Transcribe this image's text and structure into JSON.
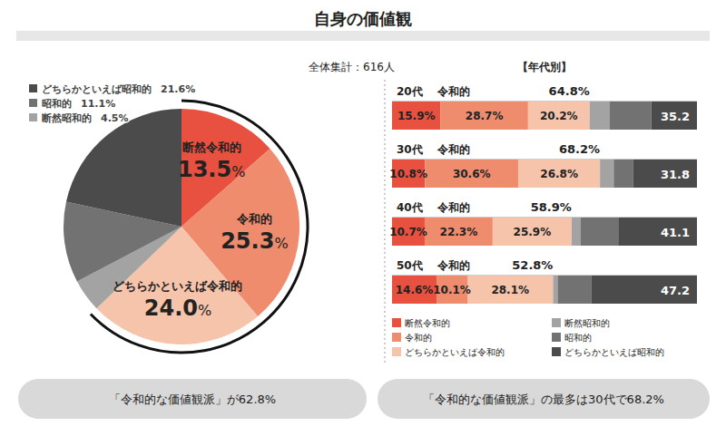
{
  "page": {
    "title": "自身の価値観",
    "sample": "全体集計：616人"
  },
  "chart_data": [
    {
      "type": "pie",
      "categories": [
        "断然令和的",
        "令和的",
        "どちらかといえば令和的",
        "断然昭和的",
        "昭和的",
        "どちらかといえば昭和的"
      ],
      "values": [
        13.5,
        25.3,
        24.0,
        4.5,
        11.1,
        21.6
      ],
      "value_labels": [
        "13.5%",
        "25.3%",
        "24.0%",
        "4.5%",
        "11.1%",
        "21.6%"
      ],
      "colors": [
        "#e8503f",
        "#ef8c6e",
        "#f6c4aa",
        "#a3a3a3",
        "#727272",
        "#4b4b4b"
      ],
      "data_labels": true,
      "legend": "top-left",
      "annotation": "「令和的な価値観派」が62.8%"
    },
    {
      "type": "bar",
      "orientation": "horizontal",
      "stacked": true,
      "title": "【年代別】",
      "categories": [
        "20代",
        "30代",
        "40代",
        "50代"
      ],
      "series": [
        {
          "name": "断然令和的",
          "color": "#e8503f",
          "values": [
            15.9,
            10.8,
            10.7,
            14.6
          ],
          "value_labels": [
            "15.9%",
            "10.8%",
            "10.7%",
            "14.6%"
          ]
        },
        {
          "name": "令和的",
          "color": "#ef8c6e",
          "values": [
            28.7,
            30.6,
            22.3,
            10.1
          ],
          "value_labels": [
            "28.7%",
            "30.6%",
            "22.3%",
            "10.1%"
          ]
        },
        {
          "name": "どちらかといえば令和的",
          "color": "#f6c4aa",
          "values": [
            20.2,
            26.8,
            25.9,
            28.1
          ],
          "value_labels": [
            "20.2%",
            "26.8%",
            "25.9%",
            "28.1%"
          ]
        },
        {
          "name": "断然昭和的",
          "color": "#a3a3a3",
          "values": [
            6.5,
            4.5,
            3.0,
            1.5
          ]
        },
        {
          "name": "昭和的",
          "color": "#727272",
          "values": [
            13.7,
            6.3,
            12.5,
            11.0
          ]
        },
        {
          "name": "どちらかといえば昭和的",
          "color": "#4b4b4b",
          "values": [
            15.0,
            21.0,
            25.6,
            34.7
          ]
        }
      ],
      "xlim": [
        0,
        100
      ],
      "tick_labels": false,
      "data_labels": true,
      "legend": "bottom",
      "reiwa_label": "令和的",
      "reiwa_totals": [
        64.8,
        68.2,
        58.9,
        52.8
      ],
      "reiwa_total_labels": [
        "64.8%",
        "68.2%",
        "58.9%",
        "52.8%"
      ],
      "showa_totals": [
        35.2,
        31.8,
        41.1,
        47.2
      ],
      "annotation": "「令和的な価値観派」の最多は30代で68.2%"
    }
  ]
}
